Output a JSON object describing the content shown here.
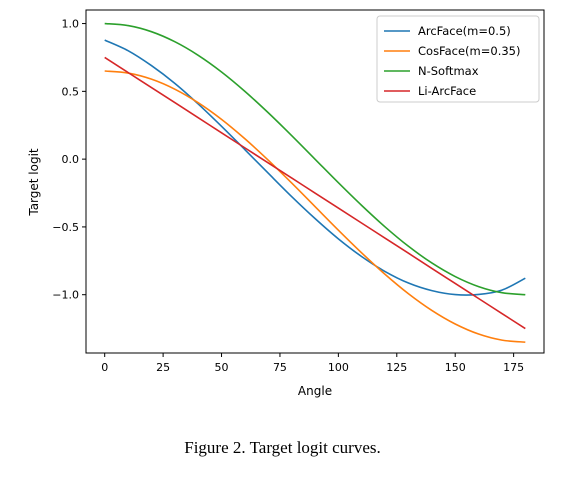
{
  "caption": "Figure 2. Target logit curves.",
  "chart_data": {
    "type": "line",
    "title": "",
    "xlabel": "Angle",
    "ylabel": "Target logit",
    "xlim": [
      -8,
      188
    ],
    "ylim": [
      -1.43,
      1.1
    ],
    "xticks": [
      0,
      25,
      50,
      75,
      100,
      125,
      150,
      175
    ],
    "xtick_labels": [
      "0",
      "25",
      "50",
      "75",
      "100",
      "125",
      "150",
      "175"
    ],
    "yticks": [
      1.0,
      0.5,
      0.0,
      -0.5,
      -1.0
    ],
    "ytick_labels": [
      "1.0",
      "0.5",
      "0.0",
      "−0.5",
      "−1.0"
    ],
    "grid": false,
    "legend_position": "top-right",
    "x": [
      0,
      10,
      20,
      30,
      40,
      50,
      60,
      70,
      80,
      90,
      100,
      110,
      120,
      130,
      140,
      150,
      160,
      170,
      180
    ],
    "series": [
      {
        "name": "ArcFace(m=0.5)",
        "color": "#1f77b4",
        "values": [
          0.878,
          0.8,
          0.69,
          0.559,
          0.407,
          0.242,
          0.07,
          -0.104,
          -0.276,
          -0.438,
          -0.588,
          -0.719,
          -0.829,
          -0.914,
          -0.97,
          -0.999,
          -0.998,
          -0.966,
          -0.878
        ]
      },
      {
        "name": "CosFace(m=0.35)",
        "color": "#ff7f0e",
        "values": [
          0.65,
          0.635,
          0.59,
          0.516,
          0.416,
          0.293,
          0.15,
          -0.008,
          -0.176,
          -0.35,
          -0.524,
          -0.692,
          -0.85,
          -0.993,
          -1.116,
          -1.216,
          -1.29,
          -1.335,
          -1.35
        ]
      },
      {
        "name": "N-Softmax",
        "color": "#2ca02c",
        "values": [
          1.0,
          0.985,
          0.94,
          0.866,
          0.766,
          0.643,
          0.5,
          0.342,
          0.174,
          0.0,
          -0.174,
          -0.342,
          -0.5,
          -0.643,
          -0.766,
          -0.866,
          -0.94,
          -0.985,
          -1.0
        ]
      },
      {
        "name": "Li-ArcFace",
        "color": "#d62728",
        "values": [
          0.75,
          0.639,
          0.528,
          0.417,
          0.306,
          0.194,
          0.083,
          -0.028,
          -0.139,
          -0.25,
          -0.361,
          -0.472,
          -0.583,
          -0.694,
          -0.806,
          -0.917,
          -1.028,
          -1.139,
          -1.25
        ]
      }
    ]
  }
}
